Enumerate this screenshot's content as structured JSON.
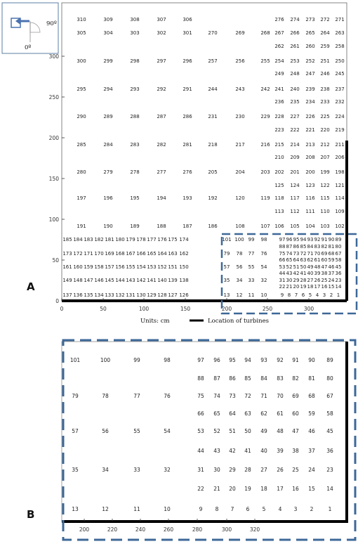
{
  "panelA": {
    "label": "A",
    "compass": {
      "angle_top": "90º",
      "angle_bottom": "0º"
    },
    "x_ticks": [
      "0",
      "50",
      "100",
      "150",
      "200",
      "250",
      "300"
    ],
    "y_ticks": [
      "0",
      "50",
      "100",
      "150",
      "200",
      "250",
      "300"
    ],
    "units_label": "Units:  cm",
    "legend_label": "Location  of turbines",
    "rows": [
      [
        "310",
        "309",
        "308",
        "307",
        "306",
        "",
        "",
        "276",
        "274",
        "273",
        "272",
        "271"
      ],
      [
        "305",
        "304",
        "303",
        "302",
        "301",
        "270",
        "269",
        "268",
        "267",
        "266",
        "265",
        "264",
        "263"
      ],
      [
        "262",
        "261",
        "260",
        "259",
        "258"
      ],
      [
        "300",
        "299",
        "298",
        "297",
        "296",
        "257",
        "256",
        "255",
        "254",
        "253",
        "252",
        "251",
        "250"
      ],
      [
        "249",
        "248",
        "247",
        "246",
        "245"
      ],
      [
        "295",
        "294",
        "293",
        "292",
        "291",
        "244",
        "243",
        "242",
        "241",
        "240",
        "239",
        "238",
        "237"
      ],
      [
        "236",
        "235",
        "234",
        "233",
        "232"
      ],
      [
        "290",
        "289",
        "288",
        "287",
        "286",
        "231",
        "230",
        "229",
        "228",
        "227",
        "226",
        "225",
        "224"
      ],
      [
        "223",
        "222",
        "221",
        "220",
        "219"
      ],
      [
        "285",
        "284",
        "283",
        "282",
        "281",
        "218",
        "217",
        "216",
        "215",
        "214",
        "213",
        "212",
        "211"
      ],
      [
        "210",
        "209",
        "208",
        "207",
        "206"
      ],
      [
        "280",
        "279",
        "278",
        "277",
        "276",
        "205",
        "204",
        "203",
        "202",
        "201",
        "200",
        "199",
        "198"
      ],
      [
        "125",
        "124",
        "123",
        "122",
        "121"
      ],
      [
        "197",
        "196",
        "195",
        "194",
        "193",
        "192",
        "120",
        "119",
        "118",
        "117",
        "116",
        "115",
        "114"
      ],
      [
        "113",
        "112",
        "111",
        "110",
        "109"
      ],
      [
        "191",
        "190",
        "189",
        "188",
        "187",
        "186",
        "108",
        "107",
        "106",
        "105",
        "104",
        "103",
        "102"
      ],
      [
        "185",
        "184",
        "183",
        "182",
        "181",
        "180",
        "179",
        "178",
        "177",
        "176",
        "175",
        "174",
        "101",
        "100",
        "99",
        "98",
        "97",
        "96",
        "95",
        "94",
        "93",
        "92",
        "91",
        "90",
        "89"
      ],
      [
        "88",
        "87",
        "86",
        "85",
        "84",
        "83",
        "82",
        "81",
        "80"
      ],
      [
        "173",
        "172",
        "171",
        "170",
        "169",
        "168",
        "167",
        "166",
        "165",
        "164",
        "163",
        "162",
        "79",
        "78",
        "77",
        "76",
        "75",
        "74",
        "73",
        "72",
        "71",
        "70",
        "69",
        "68",
        "67"
      ],
      [
        "66",
        "65",
        "64",
        "63",
        "62",
        "61",
        "60",
        "59",
        "58"
      ],
      [
        "161",
        "160",
        "159",
        "158",
        "157",
        "156",
        "155",
        "154",
        "153",
        "152",
        "151",
        "150",
        "57",
        "56",
        "55",
        "54",
        "53",
        "52",
        "51",
        "50",
        "49",
        "48",
        "47",
        "46",
        "45"
      ],
      [
        "44",
        "43",
        "42",
        "41",
        "40",
        "39",
        "38",
        "37",
        "36"
      ],
      [
        "149",
        "148",
        "147",
        "146",
        "145",
        "144",
        "143",
        "142",
        "141",
        "140",
        "139",
        "138",
        "35",
        "34",
        "33",
        "32",
        "31",
        "30",
        "29",
        "28",
        "27",
        "26",
        "25",
        "24",
        "23"
      ],
      [
        "22",
        "21",
        "20",
        "19",
        "18",
        "17",
        "16",
        "15",
        "14"
      ],
      [
        "137",
        "136",
        "135",
        "134",
        "133",
        "132",
        "131",
        "130",
        "129",
        "128",
        "127",
        "126",
        "13",
        "12",
        "11",
        "10",
        "9",
        "8",
        "7",
        "6",
        "5",
        "4",
        "3",
        "2",
        "1"
      ]
    ]
  },
  "panelB": {
    "label": "B",
    "x_ticks": [
      "200",
      "220",
      "240",
      "260",
      "280",
      "300",
      "320"
    ],
    "rows": [
      [
        "101",
        "100",
        "99",
        "98",
        "97",
        "96",
        "95",
        "94",
        "93",
        "92",
        "91",
        "90",
        "89"
      ],
      [
        "88",
        "87",
        "86",
        "85",
        "84",
        "83",
        "82",
        "81",
        "80"
      ],
      [
        "79",
        "78",
        "77",
        "76",
        "75",
        "74",
        "73",
        "72",
        "71",
        "70",
        "69",
        "68",
        "67"
      ],
      [
        "66",
        "65",
        "64",
        "63",
        "62",
        "61",
        "60",
        "59",
        "58"
      ],
      [
        "57",
        "56",
        "55",
        "54",
        "53",
        "52",
        "51",
        "50",
        "49",
        "48",
        "47",
        "46",
        "45"
      ],
      [
        "44",
        "43",
        "42",
        "41",
        "40",
        "39",
        "38",
        "37",
        "36"
      ],
      [
        "35",
        "34",
        "33",
        "32",
        "31",
        "30",
        "29",
        "28",
        "27",
        "26",
        "25",
        "24",
        "23"
      ],
      [
        "22",
        "21",
        "20",
        "19",
        "18",
        "17",
        "16",
        "15",
        "14"
      ],
      [
        "13",
        "12",
        "11",
        "10",
        "9",
        "8",
        "7",
        "6",
        "5",
        "4",
        "3",
        "2",
        "1"
      ]
    ]
  }
}
